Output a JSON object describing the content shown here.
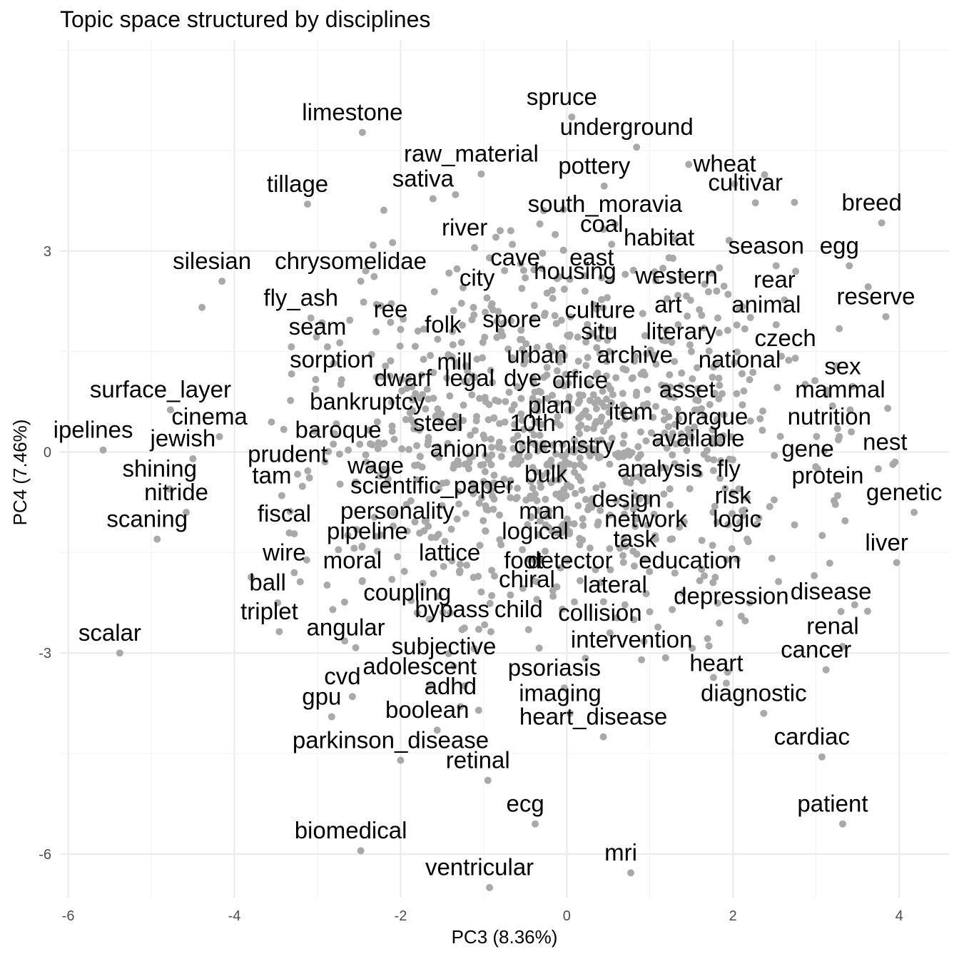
{
  "chart_data": {
    "type": "scatter",
    "title": "Topic space structured by disciplines",
    "xlabel": "PC3 (8.36%)",
    "ylabel": "PC4 (7.46%)",
    "xlim": [
      -6.1,
      4.6
    ],
    "ylim": [
      -6.65,
      6.15
    ],
    "x_ticks": [
      -6,
      -4,
      -2,
      0,
      2,
      4
    ],
    "y_ticks": [
      -6,
      -3,
      0,
      3
    ],
    "x_tick_labels": [
      "-6",
      "-4",
      "-2",
      "0",
      "2",
      "4"
    ],
    "y_tick_labels": [
      "-6",
      "-3",
      "0",
      "3"
    ],
    "grid": true,
    "point_color": "#a9a9a9",
    "labels": [
      {
        "text": "spruce",
        "x": -0.06,
        "y": 5.3
      },
      {
        "text": "limestone",
        "x": -2.58,
        "y": 5.07
      },
      {
        "text": "underground",
        "x": 0.72,
        "y": 4.85
      },
      {
        "text": "raw_material",
        "x": -1.15,
        "y": 4.45
      },
      {
        "text": "pottery",
        "x": 0.33,
        "y": 4.27
      },
      {
        "text": "wheat",
        "x": 1.9,
        "y": 4.3
      },
      {
        "text": "tillage",
        "x": -3.24,
        "y": 4.0
      },
      {
        "text": "sativa",
        "x": -1.73,
        "y": 4.08
      },
      {
        "text": "cultivar",
        "x": 2.15,
        "y": 4.02
      },
      {
        "text": "south_moravia",
        "x": 0.46,
        "y": 3.7
      },
      {
        "text": "breed",
        "x": 3.67,
        "y": 3.72
      },
      {
        "text": "coal",
        "x": 0.42,
        "y": 3.4
      },
      {
        "text": "river",
        "x": -1.23,
        "y": 3.35
      },
      {
        "text": "season",
        "x": 2.4,
        "y": 3.08
      },
      {
        "text": "egg",
        "x": 3.28,
        "y": 3.08
      },
      {
        "text": "habitat",
        "x": 1.11,
        "y": 3.2
      },
      {
        "text": "cave",
        "x": -0.62,
        "y": 2.9
      },
      {
        "text": "east",
        "x": 0.3,
        "y": 2.9
      },
      {
        "text": "silesian",
        "x": -4.27,
        "y": 2.85
      },
      {
        "text": "chrysomelidae",
        "x": -2.6,
        "y": 2.85
      },
      {
        "text": "housing",
        "x": 0.1,
        "y": 2.7
      },
      {
        "text": "city",
        "x": -1.08,
        "y": 2.6
      },
      {
        "text": "western",
        "x": 1.32,
        "y": 2.63
      },
      {
        "text": "rear",
        "x": 2.5,
        "y": 2.57
      },
      {
        "text": "fly_ash",
        "x": -3.2,
        "y": 2.3
      },
      {
        "text": "reserve",
        "x": 3.72,
        "y": 2.32
      },
      {
        "text": "animal",
        "x": 2.4,
        "y": 2.2
      },
      {
        "text": "art",
        "x": 1.22,
        "y": 2.2
      },
      {
        "text": "culture",
        "x": 0.4,
        "y": 2.12
      },
      {
        "text": "ree",
        "x": -2.12,
        "y": 2.13
      },
      {
        "text": "seam",
        "x": -3.0,
        "y": 1.87
      },
      {
        "text": "folk",
        "x": -1.49,
        "y": 1.9
      },
      {
        "text": "spore",
        "x": -0.66,
        "y": 1.98
      },
      {
        "text": "situ",
        "x": 0.39,
        "y": 1.8
      },
      {
        "text": "literary",
        "x": 1.38,
        "y": 1.8
      },
      {
        "text": "czech",
        "x": 2.63,
        "y": 1.7
      },
      {
        "text": "urban",
        "x": -0.36,
        "y": 1.45
      },
      {
        "text": "archive",
        "x": 0.82,
        "y": 1.45
      },
      {
        "text": "mill",
        "x": -1.35,
        "y": 1.35
      },
      {
        "text": "sorption",
        "x": -2.83,
        "y": 1.38
      },
      {
        "text": "national",
        "x": 2.08,
        "y": 1.38
      },
      {
        "text": "sex",
        "x": 3.32,
        "y": 1.28
      },
      {
        "text": "dwarf",
        "x": -1.97,
        "y": 1.1
      },
      {
        "text": "legal",
        "x": -1.17,
        "y": 1.1
      },
      {
        "text": "dye",
        "x": -0.53,
        "y": 1.1
      },
      {
        "text": "office",
        "x": 0.16,
        "y": 1.07
      },
      {
        "text": "surface_layer",
        "x": -4.89,
        "y": 0.93
      },
      {
        "text": "mammal",
        "x": 3.29,
        "y": 0.93
      },
      {
        "text": "asset",
        "x": 1.45,
        "y": 0.93
      },
      {
        "text": "bankruptcy",
        "x": -2.4,
        "y": 0.75
      },
      {
        "text": "plan",
        "x": -0.2,
        "y": 0.7
      },
      {
        "text": "item",
        "x": 0.77,
        "y": 0.6
      },
      {
        "text": "cinema",
        "x": -4.3,
        "y": 0.53
      },
      {
        "text": "nutrition",
        "x": 3.16,
        "y": 0.53
      },
      {
        "text": "prague",
        "x": 1.74,
        "y": 0.53
      },
      {
        "text": "10th",
        "x": -0.41,
        "y": 0.43
      },
      {
        "text": "steel",
        "x": -1.55,
        "y": 0.43
      },
      {
        "text": "baroque",
        "x": -2.75,
        "y": 0.33
      },
      {
        "text": "ipelines",
        "x": -5.7,
        "y": 0.33
      },
      {
        "text": "jewish",
        "x": -4.62,
        "y": 0.2
      },
      {
        "text": "available",
        "x": 1.58,
        "y": 0.2
      },
      {
        "text": "nest",
        "x": 3.83,
        "y": 0.15
      },
      {
        "text": "chemistry",
        "x": -0.03,
        "y": 0.1
      },
      {
        "text": "anion",
        "x": -1.3,
        "y": 0.05
      },
      {
        "text": "gene",
        "x": 2.9,
        "y": 0.05
      },
      {
        "text": "prudent",
        "x": -3.36,
        "y": -0.03
      },
      {
        "text": "wage",
        "x": -2.3,
        "y": -0.2
      },
      {
        "text": "shining",
        "x": -4.9,
        "y": -0.25
      },
      {
        "text": "analysis",
        "x": 1.12,
        "y": -0.25
      },
      {
        "text": "fly",
        "x": 1.95,
        "y": -0.25
      },
      {
        "text": "tam",
        "x": -3.55,
        "y": -0.35
      },
      {
        "text": "bulk",
        "x": -0.25,
        "y": -0.33
      },
      {
        "text": "protein",
        "x": 3.14,
        "y": -0.35
      },
      {
        "text": "scientific_paper",
        "x": -1.62,
        "y": -0.5
      },
      {
        "text": "nitride",
        "x": -4.7,
        "y": -0.6
      },
      {
        "text": "genetic",
        "x": 4.06,
        "y": -0.6
      },
      {
        "text": "risk",
        "x": 2.0,
        "y": -0.65
      },
      {
        "text": "design",
        "x": 0.72,
        "y": -0.7
      },
      {
        "text": "man",
        "x": -0.3,
        "y": -0.88
      },
      {
        "text": "personality",
        "x": -2.04,
        "y": -0.88
      },
      {
        "text": "fiscal",
        "x": -3.4,
        "y": -0.92
      },
      {
        "text": "scaning",
        "x": -5.05,
        "y": -1.0
      },
      {
        "text": "network",
        "x": 0.95,
        "y": -1.0
      },
      {
        "text": "logic",
        "x": 2.05,
        "y": -1.0
      },
      {
        "text": "pipeline",
        "x": -2.4,
        "y": -1.18
      },
      {
        "text": "logical",
        "x": -0.38,
        "y": -1.18
      },
      {
        "text": "task",
        "x": 0.82,
        "y": -1.3
      },
      {
        "text": "liver",
        "x": 3.85,
        "y": -1.35
      },
      {
        "text": "wire",
        "x": -3.4,
        "y": -1.5
      },
      {
        "text": "lattice",
        "x": -1.41,
        "y": -1.5
      },
      {
        "text": "foot",
        "x": -0.52,
        "y": -1.62
      },
      {
        "text": "detector",
        "x": 0.04,
        "y": -1.62
      },
      {
        "text": "education",
        "x": 1.48,
        "y": -1.62
      },
      {
        "text": "moral",
        "x": -2.58,
        "y": -1.62
      },
      {
        "text": "disease",
        "x": 3.18,
        "y": -2.08
      },
      {
        "text": "ball",
        "x": -3.6,
        "y": -1.95
      },
      {
        "text": "chiral",
        "x": -0.48,
        "y": -1.9
      },
      {
        "text": "lateral",
        "x": 0.58,
        "y": -1.98
      },
      {
        "text": "coupling",
        "x": -1.92,
        "y": -2.1
      },
      {
        "text": "depression",
        "x": 1.98,
        "y": -2.15
      },
      {
        "text": "bypass",
        "x": -1.38,
        "y": -2.35
      },
      {
        "text": "child",
        "x": -0.58,
        "y": -2.35
      },
      {
        "text": "collision",
        "x": 0.4,
        "y": -2.4
      },
      {
        "text": "triplet",
        "x": -3.58,
        "y": -2.38
      },
      {
        "text": "scalar",
        "x": -5.5,
        "y": -2.7
      },
      {
        "text": "angular",
        "x": -2.66,
        "y": -2.62
      },
      {
        "text": "renal",
        "x": 3.2,
        "y": -2.6
      },
      {
        "text": "intervention",
        "x": 0.78,
        "y": -2.8
      },
      {
        "text": "subjective",
        "x": -1.48,
        "y": -2.9
      },
      {
        "text": "cancer",
        "x": 3.0,
        "y": -2.95
      },
      {
        "text": "heart",
        "x": 1.8,
        "y": -3.15
      },
      {
        "text": "adolescent",
        "x": -1.77,
        "y": -3.2
      },
      {
        "text": "psoriasis",
        "x": -0.15,
        "y": -3.22
      },
      {
        "text": "cvd",
        "x": -2.7,
        "y": -3.35
      },
      {
        "text": "adhd",
        "x": -1.4,
        "y": -3.5
      },
      {
        "text": "gpu",
        "x": -2.95,
        "y": -3.65
      },
      {
        "text": "imaging",
        "x": -0.08,
        "y": -3.6
      },
      {
        "text": "diagnostic",
        "x": 2.25,
        "y": -3.6
      },
      {
        "text": "boolean",
        "x": -1.68,
        "y": -3.85
      },
      {
        "text": "heart_disease",
        "x": 0.32,
        "y": -3.95
      },
      {
        "text": "parkinson_disease",
        "x": -2.12,
        "y": -4.3
      },
      {
        "text": "cardiac",
        "x": 2.95,
        "y": -4.25
      },
      {
        "text": "retinal",
        "x": -1.07,
        "y": -4.6
      },
      {
        "text": "ecg",
        "x": -0.5,
        "y": -5.25
      },
      {
        "text": "patient",
        "x": 3.2,
        "y": -5.25
      },
      {
        "text": "biomedical",
        "x": -2.6,
        "y": -5.65
      },
      {
        "text": "mri",
        "x": 0.65,
        "y": -5.98
      },
      {
        "text": "ventricular",
        "x": -1.05,
        "y": -6.2
      }
    ]
  }
}
